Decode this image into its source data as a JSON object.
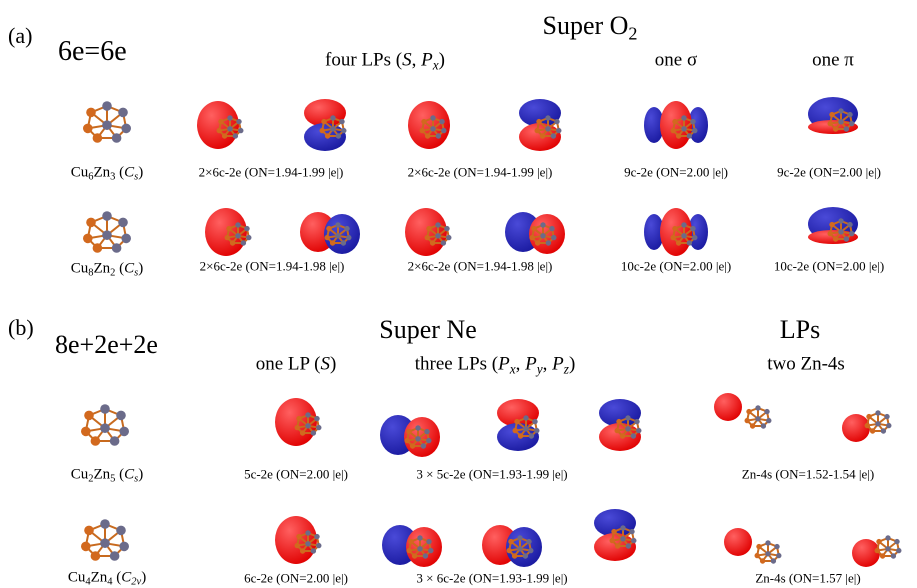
{
  "panels": [
    {
      "label": "(a)",
      "electrons": "6e=6e",
      "title": [
        {
          "text": "Super O"
        },
        {
          "text": "2",
          "style": "subscript"
        }
      ],
      "headers": [
        [
          {
            "text": "four LPs ("
          },
          {
            "text": "S",
            "style": "italic"
          },
          {
            "text": ", "
          },
          {
            "text": "P",
            "style": "italic"
          },
          {
            "text": "x",
            "style": "italic-subscript"
          },
          {
            "text": ")"
          }
        ],
        [
          {
            "text": "one σ"
          }
        ],
        [
          {
            "text": "one  π"
          }
        ]
      ],
      "rows": [
        {
          "formula": [
            {
              "text": "Cu"
            },
            {
              "text": "6",
              "style": "subscript"
            },
            {
              "text": "Zn"
            },
            {
              "text": "3",
              "style": "subscript"
            },
            {
              "text": " ("
            },
            {
              "text": "C",
              "style": "italic"
            },
            {
              "text": "s",
              "style": "italic-subscript"
            },
            {
              "text": ")"
            }
          ],
          "captions": [
            "2×6c-2e (ON=1.94-1.99 |e|)",
            "2×6c-2e (ON=1.94-1.99 |e|)",
            "9c-2e (ON=2.00 |e|)",
            "9c-2e (ON=2.00 |e|)"
          ]
        },
        {
          "formula": [
            {
              "text": "Cu"
            },
            {
              "text": "8",
              "style": "subscript"
            },
            {
              "text": "Zn"
            },
            {
              "text": "2",
              "style": "subscript"
            },
            {
              "text": " ("
            },
            {
              "text": "C",
              "style": "italic"
            },
            {
              "text": "s",
              "style": "italic-subscript"
            },
            {
              "text": ")"
            }
          ],
          "captions": [
            "2×6c-2e (ON=1.94-1.98 |e|)",
            "2×6c-2e (ON=1.94-1.98 |e|)",
            "10c-2e (ON=2.00 |e|)",
            "10c-2e (ON=2.00 |e|)"
          ]
        }
      ]
    },
    {
      "label": "(b)",
      "electrons": "8e+2e+2e",
      "title": [
        {
          "text": "Super Ne"
        }
      ],
      "side_title": [
        {
          "text": "LPs"
        }
      ],
      "headers": [
        [
          {
            "text": "one LP ("
          },
          {
            "text": "S",
            "style": "italic"
          },
          {
            "text": ")"
          }
        ],
        [
          {
            "text": "three LPs ("
          },
          {
            "text": "P",
            "style": "italic"
          },
          {
            "text": "x",
            "style": "italic-subscript"
          },
          {
            "text": ", "
          },
          {
            "text": "P",
            "style": "italic"
          },
          {
            "text": "y",
            "style": "italic-subscript"
          },
          {
            "text": ", "
          },
          {
            "text": "P",
            "style": "italic"
          },
          {
            "text": "z",
            "style": "italic-subscript"
          },
          {
            "text": ")"
          }
        ],
        [
          {
            "text": "two Zn-4s"
          }
        ]
      ],
      "rows": [
        {
          "formula": [
            {
              "text": "Cu"
            },
            {
              "text": "2",
              "style": "subscript"
            },
            {
              "text": "Zn"
            },
            {
              "text": "5",
              "style": "subscript"
            },
            {
              "text": " ("
            },
            {
              "text": "C",
              "style": "italic"
            },
            {
              "text": "s",
              "style": "italic-subscript"
            },
            {
              "text": ")"
            }
          ],
          "captions": [
            "5c-2e (ON=2.00 |e|)",
            "3 × 5c-2e (ON=1.93-1.99 |e|)",
            "Zn-4s (ON=1.52-1.54 |e|)"
          ]
        },
        {
          "formula": [
            {
              "text": "Cu"
            },
            {
              "text": "4",
              "style": "subscript"
            },
            {
              "text": "Zn"
            },
            {
              "text": "4",
              "style": "subscript"
            },
            {
              "text": " ("
            },
            {
              "text": "C",
              "style": "italic"
            },
            {
              "text": "2v",
              "style": "italic-subscript"
            },
            {
              "text": ")"
            }
          ],
          "captions": [
            "6c-2e (ON=2.00 |e|)",
            "3 × 6c-2e (ON=1.93-1.99 |e|)",
            "Zn-4s (ON=1.57 |e|)"
          ]
        }
      ]
    }
  ]
}
